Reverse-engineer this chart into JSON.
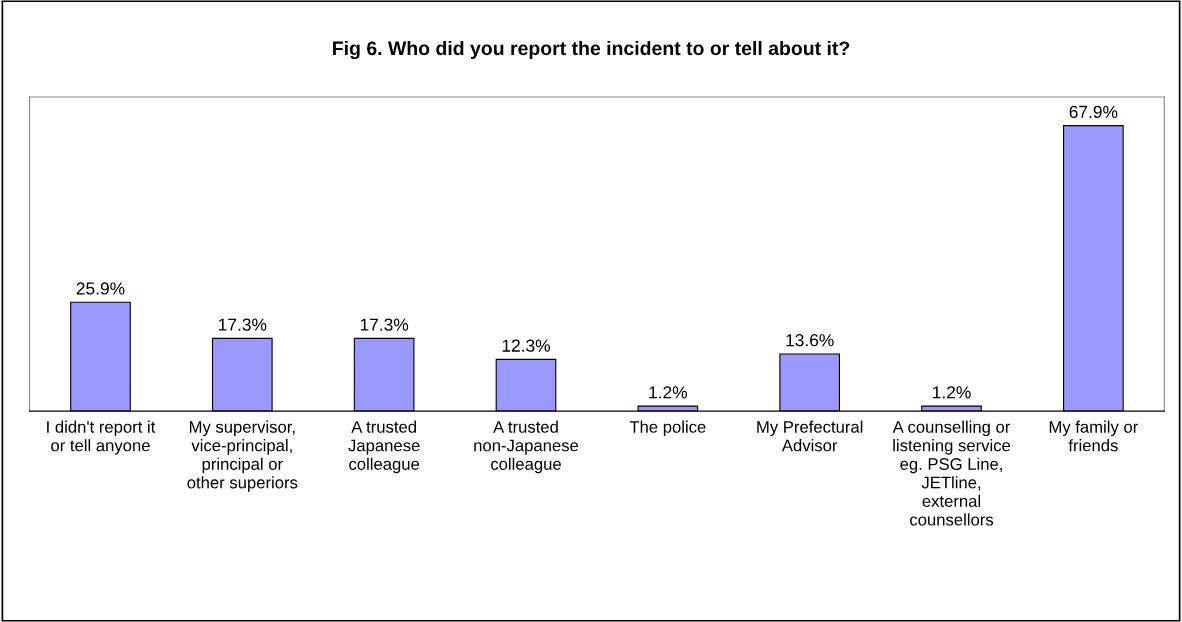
{
  "chart_data": {
    "type": "bar",
    "title": "Fig 6. Who did you report the incident to or tell about it?",
    "categories": [
      "I didn't report it or tell anyone",
      "My supervisor, vice-principal, principal or other superiors",
      "A trusted Japanese colleague",
      "A trusted non-Japanese colleague",
      "The police",
      "My Prefectural Advisor",
      "A counselling or listening service eg. PSG Line, JETline, external counsellors",
      "My family or friends"
    ],
    "values": [
      25.9,
      17.3,
      17.3,
      12.3,
      1.2,
      13.6,
      1.2,
      67.9
    ],
    "value_labels": [
      "25.9%",
      "17.3%",
      "17.3%",
      "12.3%",
      "1.2%",
      "13.6%",
      "1.2%",
      "67.9%"
    ],
    "color": "#9999ff",
    "tick_labels": "x"
  }
}
